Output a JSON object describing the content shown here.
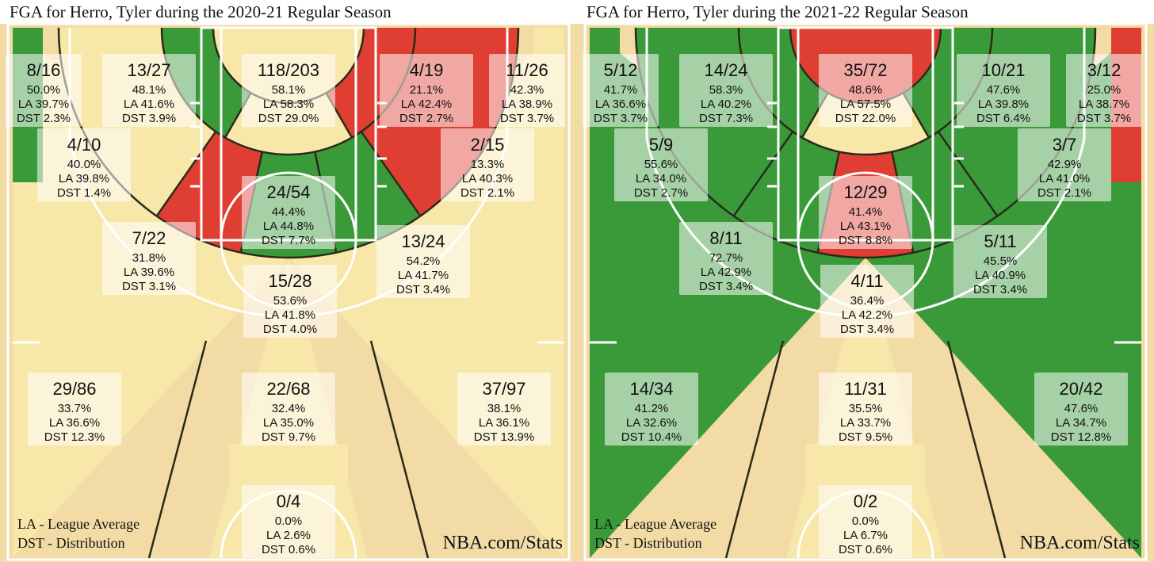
{
  "colors": {
    "above": "#3a9a3a",
    "average": "#f7e7a9",
    "below": "#df3f33",
    "wood": "#f3dba5",
    "line": "#ffffff"
  },
  "panels": [
    {
      "title": "FGA for Herro, Tyler during the 2020-21 Regular Season",
      "legend": [
        "LA - League Average",
        "DST - Distribution"
      ],
      "credit": "NBA.com/Stats",
      "zone_colors": {
        "left_corner": "above",
        "right_corner": "average",
        "ra": "average",
        "paint": "average",
        "mid_left_base": "average",
        "mid_left_wing": "above",
        "mid_center": "average",
        "mid_right_wing": "below",
        "mid_right_base": "below",
        "left_elbow": "below",
        "center_elbow": "above",
        "right_elbow": "above",
        "three_left_wing": "average",
        "three_center": "average",
        "three_right_wing": "average",
        "backcourt": "average"
      },
      "zones": [
        {
          "id": "left_corner",
          "frac": "8/16",
          "fg": "50.0%",
          "la": "LA 39.7%",
          "dst": "DST 2.3%"
        },
        {
          "id": "mid_left_base",
          "frac": "13/27",
          "fg": "48.1%",
          "la": "LA 41.6%",
          "dst": "DST 3.9%"
        },
        {
          "id": "ra",
          "frac": "118/203",
          "fg": "58.1%",
          "la": "LA 58.3%",
          "dst": "DST 29.0%"
        },
        {
          "id": "mid_right_base",
          "frac": "4/19",
          "fg": "21.1%",
          "la": "LA 42.4%",
          "dst": "DST 2.7%"
        },
        {
          "id": "right_corner",
          "frac": "11/26",
          "fg": "42.3%",
          "la": "LA 38.9%",
          "dst": "DST 3.7%"
        },
        {
          "id": "mid_left_wing",
          "frac": "4/10",
          "fg": "40.0%",
          "la": "LA 39.8%",
          "dst": "DST 1.4%"
        },
        {
          "id": "mid_right_wing",
          "frac": "2/15",
          "fg": "13.3%",
          "la": "LA 40.3%",
          "dst": "DST 2.1%"
        },
        {
          "id": "paint",
          "frac": "24/54",
          "fg": "44.4%",
          "la": "LA 44.8%",
          "dst": "DST 7.7%"
        },
        {
          "id": "left_elbow",
          "frac": "7/22",
          "fg": "31.8%",
          "la": "LA 39.6%",
          "dst": "DST 3.1%"
        },
        {
          "id": "right_elbow",
          "frac": "13/24",
          "fg": "54.2%",
          "la": "LA 41.7%",
          "dst": "DST 3.4%"
        },
        {
          "id": "center_elbow",
          "frac": "15/28",
          "fg": "53.6%",
          "la": "LA 41.8%",
          "dst": "DST 4.0%"
        },
        {
          "id": "three_left_wing",
          "frac": "29/86",
          "fg": "33.7%",
          "la": "LA 36.6%",
          "dst": "DST 12.3%"
        },
        {
          "id": "three_center",
          "frac": "22/68",
          "fg": "32.4%",
          "la": "LA 35.0%",
          "dst": "DST 9.7%"
        },
        {
          "id": "three_right_wing",
          "frac": "37/97",
          "fg": "38.1%",
          "la": "LA 36.1%",
          "dst": "DST 13.9%"
        },
        {
          "id": "backcourt",
          "frac": "0/4",
          "fg": "0.0%",
          "la": "LA 2.6%",
          "dst": "DST 0.6%"
        }
      ]
    },
    {
      "title": "FGA for Herro, Tyler during the 2021-22 Regular Season",
      "legend": [
        "LA - League Average",
        "DST - Distribution"
      ],
      "credit": "NBA.com/Stats",
      "zone_colors": {
        "left_corner": "above",
        "right_corner": "below",
        "ra": "below",
        "paint": "average",
        "mid_left_base": "above",
        "mid_left_wing": "above",
        "mid_center": "average",
        "mid_right_wing": "above",
        "mid_right_base": "above",
        "left_elbow": "above",
        "center_elbow": "below",
        "right_elbow": "above",
        "three_left_wing": "above",
        "three_center": "average",
        "three_right_wing": "above",
        "backcourt": "average"
      },
      "zones": [
        {
          "id": "left_corner",
          "frac": "5/12",
          "fg": "41.7%",
          "la": "LA 36.6%",
          "dst": "DST 3.7%"
        },
        {
          "id": "mid_left_base",
          "frac": "14/24",
          "fg": "58.3%",
          "la": "LA 40.2%",
          "dst": "DST 7.3%"
        },
        {
          "id": "ra",
          "frac": "35/72",
          "fg": "48.6%",
          "la": "LA 57.5%",
          "dst": "DST 22.0%"
        },
        {
          "id": "mid_right_base",
          "frac": "10/21",
          "fg": "47.6%",
          "la": "LA 39.8%",
          "dst": "DST 6.4%"
        },
        {
          "id": "right_corner",
          "frac": "3/12",
          "fg": "25.0%",
          "la": "LA 38.7%",
          "dst": "DST 3.7%"
        },
        {
          "id": "mid_left_wing",
          "frac": "5/9",
          "fg": "55.6%",
          "la": "LA 34.0%",
          "dst": "DST 2.7%"
        },
        {
          "id": "mid_right_wing",
          "frac": "3/7",
          "fg": "42.9%",
          "la": "LA 41.0%",
          "dst": "DST 2.1%"
        },
        {
          "id": "paint",
          "frac": "12/29",
          "fg": "41.4%",
          "la": "LA 43.1%",
          "dst": "DST 8.8%"
        },
        {
          "id": "left_elbow",
          "frac": "8/11",
          "fg": "72.7%",
          "la": "LA 42.9%",
          "dst": "DST 3.4%"
        },
        {
          "id": "right_elbow",
          "frac": "5/11",
          "fg": "45.5%",
          "la": "LA 40.9%",
          "dst": "DST 3.4%"
        },
        {
          "id": "center_elbow",
          "frac": "4/11",
          "fg": "36.4%",
          "la": "LA 42.2%",
          "dst": "DST 3.4%"
        },
        {
          "id": "three_left_wing",
          "frac": "14/34",
          "fg": "41.2%",
          "la": "LA 32.6%",
          "dst": "DST 10.4%"
        },
        {
          "id": "three_center",
          "frac": "11/31",
          "fg": "35.5%",
          "la": "LA 33.7%",
          "dst": "DST 9.5%"
        },
        {
          "id": "three_right_wing",
          "frac": "20/42",
          "fg": "47.6%",
          "la": "LA 34.7%",
          "dst": "DST 12.8%"
        },
        {
          "id": "backcourt",
          "frac": "0/2",
          "fg": "0.0%",
          "la": "LA 6.7%",
          "dst": "DST 0.6%"
        }
      ]
    }
  ],
  "chart_data": [
    {
      "type": "heatmap",
      "title": "FGA for Herro, Tyler during the 2020-21 Regular Season",
      "categories": [
        "Left Corner 3",
        "Mid-Range Left Baseline",
        "Restricted Area",
        "Mid-Range Right Baseline",
        "Right Corner 3",
        "Mid-Range Left Wing",
        "Mid-Range Right Wing",
        "In The Paint (Non-RA)",
        "Mid-Range Left Elbow",
        "Mid-Range Right Elbow",
        "Mid-Range Center",
        "Above the Break 3 Left",
        "Above the Break 3 Center",
        "Above the Break 3 Right",
        "Backcourt"
      ],
      "made": [
        8,
        13,
        118,
        4,
        11,
        4,
        2,
        24,
        7,
        13,
        15,
        29,
        22,
        37,
        0
      ],
      "attempts": [
        16,
        27,
        203,
        19,
        26,
        10,
        15,
        54,
        22,
        24,
        28,
        86,
        68,
        97,
        4
      ],
      "fg_pct": [
        50.0,
        48.1,
        58.1,
        21.1,
        42.3,
        40.0,
        13.3,
        44.4,
        31.8,
        54.2,
        53.6,
        33.7,
        32.4,
        38.1,
        0.0
      ],
      "league_avg_pct": [
        39.7,
        41.6,
        58.3,
        42.4,
        38.9,
        39.8,
        40.3,
        44.8,
        39.6,
        41.7,
        41.8,
        36.6,
        35.0,
        36.1,
        2.6
      ],
      "distribution_pct": [
        2.3,
        3.9,
        29.0,
        2.7,
        3.7,
        1.4,
        2.1,
        7.7,
        3.1,
        3.4,
        4.0,
        12.3,
        9.7,
        13.9,
        0.6
      ]
    },
    {
      "type": "heatmap",
      "title": "FGA for Herro, Tyler during the 2021-22 Regular Season",
      "categories": [
        "Left Corner 3",
        "Mid-Range Left Baseline",
        "Restricted Area",
        "Mid-Range Right Baseline",
        "Right Corner 3",
        "Mid-Range Left Wing",
        "Mid-Range Right Wing",
        "In The Paint (Non-RA)",
        "Mid-Range Left Elbow",
        "Mid-Range Right Elbow",
        "Mid-Range Center",
        "Above the Break 3 Left",
        "Above the Break 3 Center",
        "Above the Break 3 Right",
        "Backcourt"
      ],
      "made": [
        5,
        14,
        35,
        10,
        3,
        5,
        3,
        12,
        8,
        5,
        4,
        14,
        11,
        20,
        0
      ],
      "attempts": [
        12,
        24,
        72,
        21,
        12,
        9,
        7,
        29,
        11,
        11,
        11,
        34,
        31,
        42,
        2
      ],
      "fg_pct": [
        41.7,
        58.3,
        48.6,
        47.6,
        25.0,
        55.6,
        42.9,
        41.4,
        72.7,
        45.5,
        36.4,
        41.2,
        35.5,
        47.6,
        0.0
      ],
      "league_avg_pct": [
        36.6,
        40.2,
        57.5,
        39.8,
        38.7,
        34.0,
        41.0,
        43.1,
        42.9,
        40.9,
        42.2,
        32.6,
        33.7,
        34.7,
        6.7
      ],
      "distribution_pct": [
        3.7,
        7.3,
        22.0,
        6.4,
        3.7,
        2.7,
        2.1,
        8.8,
        3.4,
        3.4,
        3.4,
        10.4,
        9.5,
        12.8,
        0.6
      ]
    }
  ]
}
